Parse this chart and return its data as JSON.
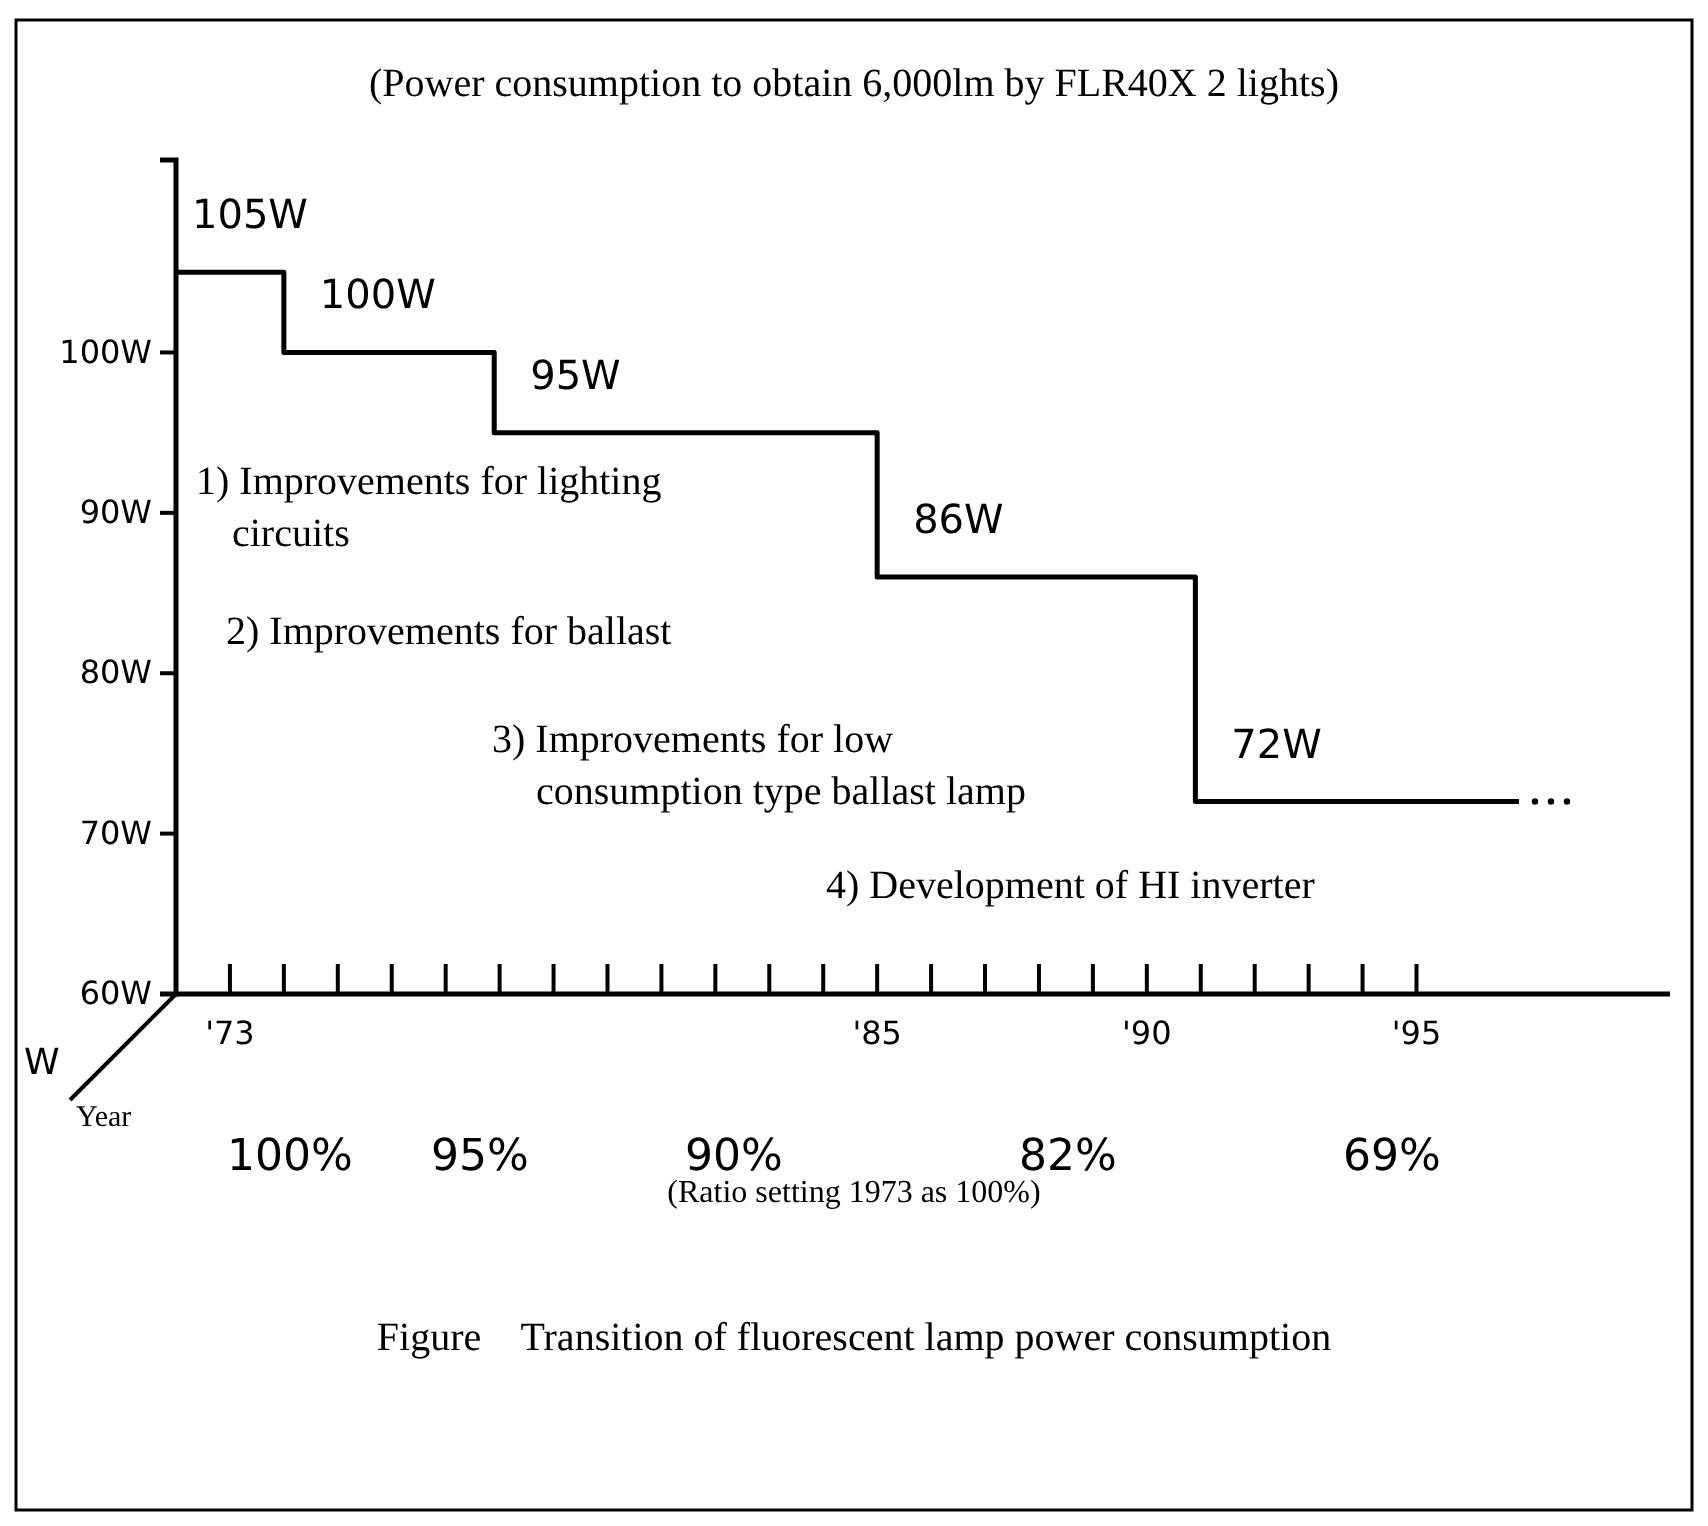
{
  "chart_data": {
    "type": "step",
    "title": "(Power consumption to obtain 6,000lm by FLR40X 2 lights)",
    "xlabel": "Year",
    "ylabel": "W",
    "x": [
      1972,
      1974,
      1977.9,
      1985,
      1990.9,
      1996.9
    ],
    "series": [
      {
        "color": "#000000",
        "values": [
          105,
          100,
          95,
          86,
          72,
          72
        ],
        "value_labels": [
          "105W",
          "100W",
          "95W",
          "86W",
          "72W",
          null
        ]
      }
    ],
    "xlim": [
      1972,
      1999.7
    ],
    "xticks": [
      {
        "value": 1973,
        "label": "'73"
      },
      {
        "value": 1974,
        "label": null
      },
      {
        "value": 1975,
        "label": null
      },
      {
        "value": 1976,
        "label": null
      },
      {
        "value": 1977,
        "label": null
      },
      {
        "value": 1978,
        "label": null
      },
      {
        "value": 1979,
        "label": null
      },
      {
        "value": 1980,
        "label": null
      },
      {
        "value": 1981,
        "label": null
      },
      {
        "value": 1982,
        "label": null
      },
      {
        "value": 1983,
        "label": null
      },
      {
        "value": 1984,
        "label": null
      },
      {
        "value": 1985,
        "label": "'85"
      },
      {
        "value": 1986,
        "label": null
      },
      {
        "value": 1987,
        "label": null
      },
      {
        "value": 1988,
        "label": null
      },
      {
        "value": 1989,
        "label": null
      },
      {
        "value": 1990,
        "label": "'90"
      },
      {
        "value": 1991,
        "label": null
      },
      {
        "value": 1992,
        "label": null
      },
      {
        "value": 1993,
        "label": null
      },
      {
        "value": 1994,
        "label": null
      },
      {
        "value": 1995,
        "label": "'95"
      }
    ],
    "ylim": [
      60,
      112
    ],
    "yticks": [
      {
        "value": 60,
        "label": "60W"
      },
      {
        "value": 70,
        "label": "70W"
      },
      {
        "value": 80,
        "label": "80W"
      },
      {
        "value": 90,
        "label": "90W"
      },
      {
        "value": 100,
        "label": "100W"
      }
    ],
    "annotations": [
      "1) Improvements for lighting circuits",
      "2) Improvements for ballast",
      "3) Improvements for low consumption type ballast lamp",
      "4) Development of HI inverter",
      "100%",
      "95%",
      "90%",
      "82%",
      "69%",
      "(Ratio setting 1973 as 100%)",
      "Figure    Transition of fluorescent lamp power consumption"
    ],
    "grid": false,
    "marker": "none",
    "line_style": "solid"
  }
}
